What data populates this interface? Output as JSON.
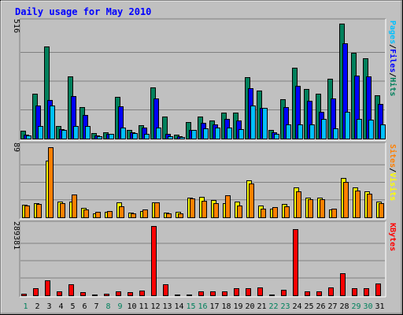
{
  "chart_data": {
    "type": "bar",
    "title": "Daily usage for May 2010",
    "categories": [
      "1",
      "2",
      "3",
      "4",
      "5",
      "6",
      "7",
      "8",
      "9",
      "10",
      "11",
      "12",
      "13",
      "14",
      "15",
      "16",
      "17",
      "18",
      "19",
      "20",
      "21",
      "22",
      "23",
      "24",
      "25",
      "26",
      "27",
      "28",
      "29",
      "30",
      "31"
    ],
    "weekend_days": [
      1,
      8,
      9,
      15,
      16,
      22,
      23,
      29,
      30
    ],
    "panels": [
      {
        "name": "hits-files-pages",
        "ymax_label": "516",
        "ymax": 516,
        "axis_label_parts": [
          {
            "text": "Pages",
            "color": "#00C0FF"
          },
          {
            "text": "/",
            "color": "#000000"
          },
          {
            "text": "Files",
            "color": "#0000FF"
          },
          {
            "text": "/",
            "color": "#000000"
          },
          {
            "text": "Hits",
            "color": "#00805C"
          }
        ],
        "series": [
          {
            "name": "Hits",
            "color": "#00805C",
            "values": [
              34,
              200,
              415,
              55,
              280,
              142,
              24,
              30,
              188,
              38,
              60,
              228,
              98,
              17,
              75,
              100,
              80,
              118,
              118,
              275,
              214,
              40,
              175,
              318,
              222,
              200,
              270,
              516,
              385,
              360,
              195
            ]
          },
          {
            "name": "Files",
            "color": "#0000FF",
            "values": [
              18,
              150,
              172,
              42,
              190,
              105,
              14,
              22,
              145,
              30,
              48,
              180,
              20,
              10,
              40,
              72,
              62,
              88,
              80,
              225,
              138,
              30,
              140,
              238,
              170,
              120,
              180,
              428,
              282,
              278,
              155
            ]
          },
          {
            "name": "Pages",
            "color": "#00C0FF",
            "values": [
              14,
              55,
              150,
              40,
              55,
              55,
              10,
              20,
              50,
              25,
              20,
              50,
              12,
              8,
              40,
              45,
              48,
              50,
              42,
              150,
              138,
              20,
              65,
              65,
              65,
              90,
              45,
              120,
              90,
              85,
              65
            ]
          }
        ]
      },
      {
        "name": "visits-sites",
        "ymax_label": "89",
        "ymax": 89,
        "axis_label_parts": [
          {
            "text": "Sites",
            "color": "#FF8000"
          },
          {
            "text": "/",
            "color": "#000000"
          },
          {
            "text": "Visits",
            "color": "#FFFF00"
          }
        ],
        "series": [
          {
            "name": "Visits",
            "color": "#FFFF00",
            "values": [
              16,
              18,
              72,
              20,
              20,
              12,
              5,
              7,
              19,
              6,
              8,
              19,
              6,
              7,
              25,
              26,
              22,
              18,
              20,
              47,
              15,
              11,
              17,
              38,
              25,
              25,
              10,
              50,
              38,
              33,
              20
            ]
          },
          {
            "name": "Sites",
            "color": "#FF8000",
            "values": [
              15,
              17,
              89,
              18,
              29,
              10,
              7,
              8,
              14,
              5,
              10,
              19,
              5,
              5,
              24,
              21,
              18,
              28,
              15,
              43,
              11,
              13,
              14,
              33,
              23,
              23,
              11,
              45,
              34,
              30,
              18
            ]
          }
        ]
      },
      {
        "name": "kbytes",
        "ymax_label": "289381",
        "ymax": 289381,
        "axis_label_parts": [
          {
            "text": "KBytes",
            "color": "#FF0000"
          }
        ],
        "series": [
          {
            "name": "KBytes",
            "color": "#FF0000",
            "values": [
              8000,
              30000,
              63000,
              18000,
              45000,
              14000,
              4000,
              8000,
              18000,
              14000,
              20000,
              289381,
              46000,
              4000,
              4000,
              18000,
              15000,
              18000,
              30000,
              30000,
              33000,
              3000,
              23000,
              277000,
              18000,
              15000,
              32000,
              92000,
              28000,
              31000,
              50000
            ]
          }
        ]
      }
    ]
  }
}
